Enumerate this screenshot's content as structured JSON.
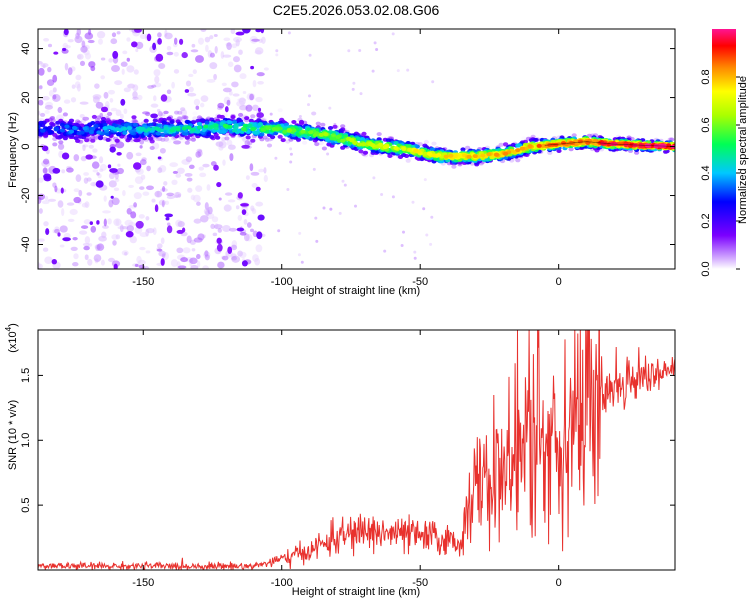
{
  "title": "C2E5.2026.053.02.08.G06",
  "chart_data": [
    {
      "type": "heatmap",
      "name": "spectrogram",
      "xlabel": "Height of straight line (km)",
      "ylabel": "Frequency (Hz)",
      "xlim": [
        -188,
        42
      ],
      "ylim": [
        -50,
        48
      ],
      "xticks": [
        -150,
        -100,
        -50,
        0
      ],
      "yticks": [
        -40,
        -20,
        0,
        20,
        40
      ],
      "ridge_path": [
        {
          "x": -188,
          "y": 7
        },
        {
          "x": -160,
          "y": 7
        },
        {
          "x": -140,
          "y": 7
        },
        {
          "x": -120,
          "y": 8
        },
        {
          "x": -100,
          "y": 7
        },
        {
          "x": -85,
          "y": 5
        },
        {
          "x": -70,
          "y": 1
        },
        {
          "x": -55,
          "y": -1
        },
        {
          "x": -42,
          "y": -4
        },
        {
          "x": -30,
          "y": -4
        },
        {
          "x": -20,
          "y": -3
        },
        {
          "x": -10,
          "y": 0
        },
        {
          "x": 0,
          "y": 1
        },
        {
          "x": 10,
          "y": 2
        },
        {
          "x": 20,
          "y": 1
        },
        {
          "x": 42,
          "y": 0
        }
      ],
      "colorbar": {
        "label": "Normalized spectral amplitude",
        "ticks": [
          "0.0",
          "0.2",
          "0.4",
          "0.6",
          "0.8"
        ],
        "tick_values": [
          0.0,
          0.2,
          0.4,
          0.6,
          0.8
        ],
        "range": [
          0,
          1
        ],
        "colors": [
          "#ffffff",
          "#7b00ff",
          "#0000ff",
          "#00ffff",
          "#00ff00",
          "#ffff00",
          "#ff8800",
          "#ff0000",
          "#ff1493"
        ]
      }
    },
    {
      "type": "line",
      "name": "snr",
      "xlabel": "Height of straight line (km)",
      "ylabel": "SNR (10 * v/v)",
      "scale_label": "(x10",
      "scale_exponent": "4",
      "xlim": [
        -188,
        42
      ],
      "ylim": [
        0,
        1.85
      ],
      "xticks": [
        -150,
        -100,
        -50,
        0
      ],
      "yticks": [
        0.5,
        1.0,
        1.5
      ],
      "ytick_labels": [
        "0.5",
        "1.0",
        "1.5"
      ],
      "line_color": "#e8312d",
      "envelope": [
        {
          "x": -188,
          "y": 0.03
        },
        {
          "x": -110,
          "y": 0.03
        },
        {
          "x": -100,
          "y": 0.08
        },
        {
          "x": -90,
          "y": 0.15
        },
        {
          "x": -80,
          "y": 0.25
        },
        {
          "x": -70,
          "y": 0.3
        },
        {
          "x": -60,
          "y": 0.28
        },
        {
          "x": -45,
          "y": 0.25
        },
        {
          "x": -35,
          "y": 0.2
        },
        {
          "x": -33,
          "y": 0.55
        },
        {
          "x": -25,
          "y": 0.7
        },
        {
          "x": -15,
          "y": 0.85
        },
        {
          "x": -5,
          "y": 1.0
        },
        {
          "x": 5,
          "y": 1.15
        },
        {
          "x": 15,
          "y": 1.35
        },
        {
          "x": 25,
          "y": 1.48
        },
        {
          "x": 42,
          "y": 1.55
        }
      ]
    }
  ]
}
